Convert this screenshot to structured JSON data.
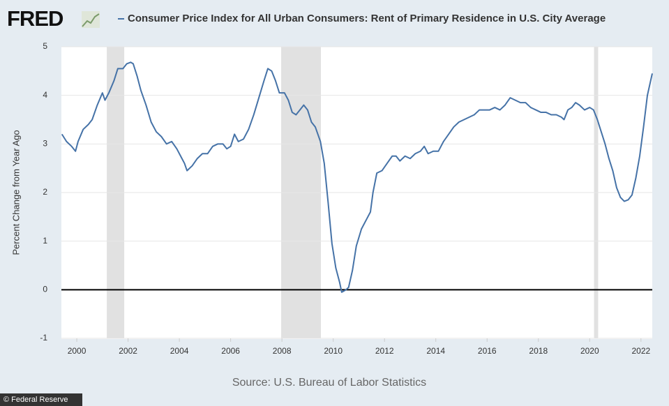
{
  "chart_data": {
    "type": "line",
    "logo": "FRED",
    "y_label": "Percent Change from Year Ago",
    "source": "Source: U.S. Bureau of Labor Statistics",
    "watermark": "© Federal Reserve",
    "xlim": [
      1999.4,
      2022.44
    ],
    "xticks": [
      2000,
      2002,
      2004,
      2006,
      2008,
      2010,
      2012,
      2014,
      2016,
      2018,
      2020,
      2022
    ],
    "ylim": [
      -1,
      5
    ],
    "yticks": [
      -1,
      0,
      1,
      2,
      3,
      4,
      5
    ],
    "grid": true,
    "zero_line": true,
    "recessions": [
      [
        2001.17,
        2001.85
      ],
      [
        2007.97,
        2009.52
      ],
      [
        2020.17,
        2020.33
      ]
    ],
    "recession_color": "#e1e1e1",
    "x": [
      1999.42,
      1999.6,
      1999.8,
      1999.95,
      2000.05,
      2000.25,
      2000.45,
      2000.6,
      2000.8,
      2001.0,
      2001.1,
      2001.25,
      2001.45,
      2001.6,
      2001.8,
      2001.95,
      2002.1,
      2002.2,
      2002.35,
      2002.5,
      2002.7,
      2002.9,
      2003.1,
      2003.3,
      2003.5,
      2003.7,
      2003.9,
      2004.1,
      2004.2,
      2004.3,
      2004.5,
      2004.7,
      2004.9,
      2005.1,
      2005.3,
      2005.5,
      2005.7,
      2005.85,
      2006.0,
      2006.15,
      2006.3,
      2006.5,
      2006.7,
      2006.9,
      2007.1,
      2007.3,
      2007.45,
      2007.6,
      2007.75,
      2007.9,
      2008.1,
      2008.25,
      2008.4,
      2008.55,
      2008.7,
      2008.85,
      2009.0,
      2009.15,
      2009.3,
      2009.5,
      2009.65,
      2009.8,
      2009.95,
      2010.1,
      2010.25,
      2010.33,
      2010.5,
      2010.6,
      2010.75,
      2010.9,
      2011.1,
      2011.3,
      2011.45,
      2011.55,
      2011.7,
      2011.9,
      2012.1,
      2012.3,
      2012.45,
      2012.6,
      2012.8,
      2013.0,
      2013.2,
      2013.4,
      2013.55,
      2013.7,
      2013.9,
      2014.1,
      2014.3,
      2014.5,
      2014.7,
      2014.9,
      2015.1,
      2015.3,
      2015.5,
      2015.7,
      2015.9,
      2016.1,
      2016.3,
      2016.5,
      2016.7,
      2016.9,
      2017.1,
      2017.3,
      2017.5,
      2017.7,
      2017.9,
      2018.1,
      2018.3,
      2018.5,
      2018.7,
      2018.9,
      2019.0,
      2019.15,
      2019.3,
      2019.45,
      2019.6,
      2019.8,
      2020.0,
      2020.15,
      2020.3,
      2020.45,
      2020.6,
      2020.75,
      2020.9,
      2021.05,
      2021.2,
      2021.35,
      2021.5,
      2021.65,
      2021.8,
      2021.95,
      2022.1,
      2022.25,
      2022.44
    ],
    "series": [
      {
        "name": "Consumer Price Index for All Urban Consumers: Rent of Primary Residence in U.S. City Average",
        "color": "#4572a7",
        "values": [
          3.2,
          3.05,
          2.95,
          2.85,
          3.05,
          3.3,
          3.4,
          3.5,
          3.8,
          4.05,
          3.9,
          4.05,
          4.3,
          4.55,
          4.55,
          4.65,
          4.68,
          4.65,
          4.4,
          4.1,
          3.8,
          3.45,
          3.25,
          3.15,
          3.0,
          3.05,
          2.9,
          2.7,
          2.6,
          2.45,
          2.55,
          2.7,
          2.8,
          2.8,
          2.95,
          3.0,
          3.0,
          2.9,
          2.95,
          3.2,
          3.05,
          3.1,
          3.3,
          3.6,
          3.95,
          4.3,
          4.55,
          4.5,
          4.3,
          4.05,
          4.05,
          3.9,
          3.65,
          3.6,
          3.7,
          3.8,
          3.7,
          3.45,
          3.35,
          3.05,
          2.6,
          1.8,
          0.95,
          0.45,
          0.15,
          -0.05,
          0.0,
          0.05,
          0.4,
          0.9,
          1.25,
          1.45,
          1.6,
          2.0,
          2.4,
          2.45,
          2.6,
          2.75,
          2.75,
          2.65,
          2.75,
          2.7,
          2.8,
          2.85,
          2.95,
          2.8,
          2.85,
          2.85,
          3.05,
          3.2,
          3.35,
          3.45,
          3.5,
          3.55,
          3.6,
          3.7,
          3.7,
          3.7,
          3.75,
          3.7,
          3.8,
          3.95,
          3.9,
          3.85,
          3.85,
          3.75,
          3.7,
          3.65,
          3.65,
          3.6,
          3.6,
          3.55,
          3.5,
          3.7,
          3.75,
          3.85,
          3.8,
          3.7,
          3.75,
          3.7,
          3.5,
          3.25,
          3.0,
          2.7,
          2.45,
          2.1,
          1.9,
          1.82,
          1.85,
          1.95,
          2.3,
          2.75,
          3.35,
          4.0,
          4.45
        ]
      }
    ]
  }
}
